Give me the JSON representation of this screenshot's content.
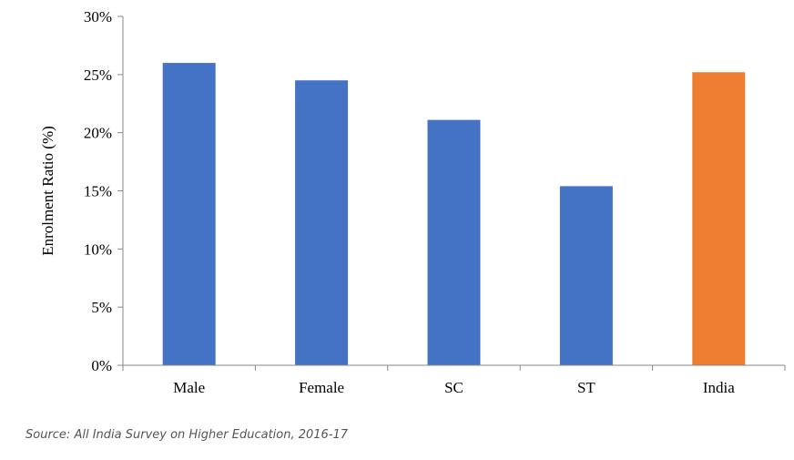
{
  "chart_data": {
    "type": "bar",
    "categories": [
      "Male",
      "Female",
      "SC",
      "ST",
      "India"
    ],
    "values": [
      26.0,
      24.5,
      21.1,
      15.4,
      25.2
    ],
    "bar_colors": [
      "#4472C4",
      "#4472C4",
      "#4472C4",
      "#4472C4",
      "#ED7D31"
    ],
    "ylabel": "Enrolment Ratio (%)",
    "xlabel": "",
    "ylim": [
      0,
      30
    ],
    "yticks": [
      0,
      5,
      10,
      15,
      20,
      25,
      30
    ],
    "ytick_labels": [
      "0%",
      "5%",
      "10%",
      "15%",
      "20%",
      "25%",
      "30%"
    ],
    "grid": false,
    "legend": "none"
  },
  "source": "Source: All India Survey on Higher Education, 2016-17"
}
